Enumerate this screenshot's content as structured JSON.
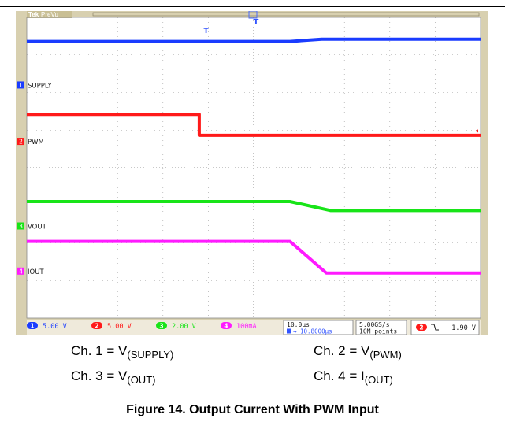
{
  "scope": {
    "header": {
      "brand": "Tek",
      "mode": "PreVu"
    },
    "colors": {
      "ch1": "#1a3cff",
      "ch2": "#ff1a1a",
      "ch3": "#18e418",
      "ch4": "#ff1aff",
      "screen": "#ffffff",
      "bezel": "#d8d0b0",
      "grid": "#9a9a9a"
    }
  },
  "chart_data": {
    "type": "line",
    "xlim": [
      0,
      10
    ],
    "ylim": [
      0,
      8
    ],
    "series": [
      {
        "name": "SUPPLY",
        "channel": "1",
        "color": "#1a3cff",
        "x": [
          0,
          5.8,
          6.5,
          10
        ],
        "y": [
          7.36,
          7.36,
          7.42,
          7.42
        ]
      },
      {
        "name": "PWM",
        "channel": "2",
        "color": "#ff1a1a",
        "x": [
          0,
          3.8,
          3.8,
          10
        ],
        "y": [
          5.42,
          5.42,
          4.86,
          4.86
        ]
      },
      {
        "name": "VOUT",
        "channel": "3",
        "color": "#18e418",
        "x": [
          0,
          5.8,
          6.7,
          10
        ],
        "y": [
          3.1,
          3.1,
          2.86,
          2.86
        ]
      },
      {
        "name": "IOUT",
        "channel": "4",
        "color": "#ff1aff",
        "x": [
          0,
          5.8,
          6.6,
          10
        ],
        "y": [
          2.04,
          2.04,
          1.2,
          1.2
        ]
      }
    ],
    "channel_markers": [
      {
        "channel": "1",
        "label": "SUPPLY",
        "color": "#1a3cff",
        "y": 6.2
      },
      {
        "channel": "2",
        "label": "PWM",
        "color": "#ff1a1a",
        "y": 4.7
      },
      {
        "channel": "3",
        "label": "VOUT",
        "color": "#18e418",
        "y": 2.45
      },
      {
        "channel": "4",
        "label": "IOUT",
        "color": "#ff1aff",
        "y": 1.25
      }
    ],
    "readouts": {
      "channels": [
        {
          "channel": "1",
          "scale": "5.00 V",
          "color": "#1a3cff"
        },
        {
          "channel": "2",
          "scale": "5.00 V",
          "color": "#ff1a1a"
        },
        {
          "channel": "3",
          "scale": "2.00 V",
          "color": "#18e418"
        },
        {
          "channel": "4",
          "scale": "100mA",
          "color": "#ff1aff"
        }
      ],
      "timebase": "10.0µs",
      "trigger_position": "→ 10.8000µs",
      "sample_rate": "5.00GS/s",
      "record_length": "10M points",
      "trigger_channel": "2",
      "trigger_level": "1.90 V"
    }
  },
  "legend": {
    "ch1": {
      "prefix": "Ch. 1 = V",
      "sub": "(SUPPLY)"
    },
    "ch2": {
      "prefix": "Ch. 2 = V",
      "sub": "(PWM)"
    },
    "ch3": {
      "prefix": "Ch. 3 = V",
      "sub": "(OUT)"
    },
    "ch4": {
      "prefix": "Ch. 4 = I",
      "sub": "(OUT)"
    }
  },
  "caption": "Figure 14. Output Current With PWM Input"
}
